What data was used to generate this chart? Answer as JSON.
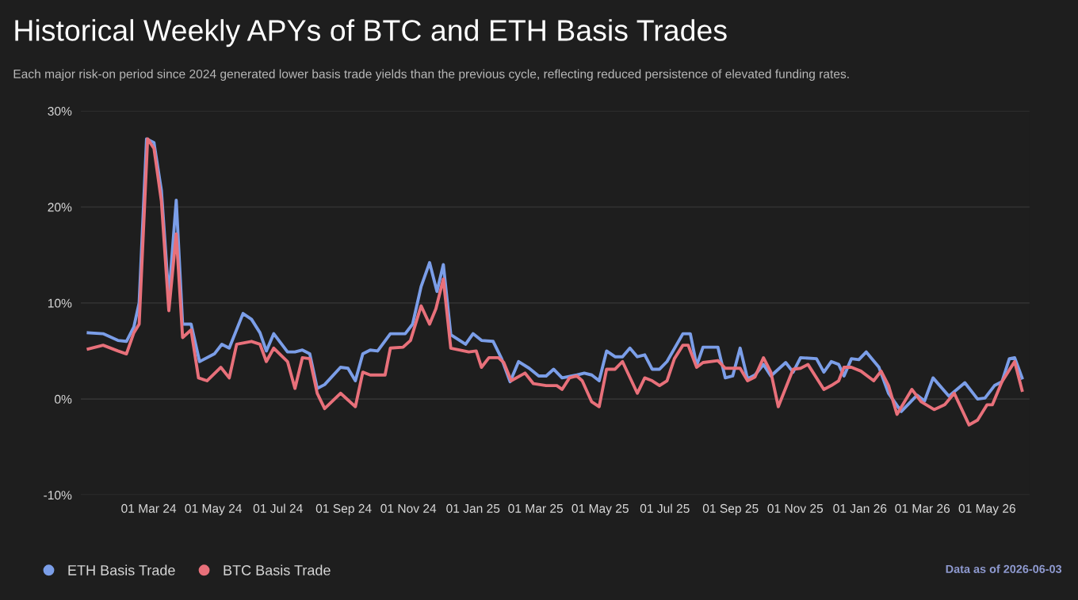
{
  "chart_data": {
    "type": "line",
    "title": "Historical Weekly APYs of BTC and ETH Basis Trades",
    "subtitle": "Each major risk-on period since 2024 generated lower basis trade yields than the previous cycle, reflecting reduced persistence of elevated funding rates.",
    "annotations": [
      "Data as of 2026-06-03"
    ],
    "xlim": [
      "2023-12-28",
      "2026-06-10"
    ],
    "xticks": [
      {
        "value": "2024-03-01",
        "label": "01 Mar 24"
      },
      {
        "value": "2024-05-01",
        "label": "01 May 24"
      },
      {
        "value": "2024-07-01",
        "label": "01 Jul 24"
      },
      {
        "value": "2024-09-01",
        "label": "01 Sep 24"
      },
      {
        "value": "2024-11-01",
        "label": "01 Nov 24"
      },
      {
        "value": "2025-01-01",
        "label": "01 Jan 25"
      },
      {
        "value": "2025-03-01",
        "label": "01 Mar 25"
      },
      {
        "value": "2025-05-01",
        "label": "01 May 25"
      },
      {
        "value": "2025-07-01",
        "label": "01 Jul 25"
      },
      {
        "value": "2025-09-01",
        "label": "01 Sep 25"
      },
      {
        "value": "2025-11-01",
        "label": "01 Nov 25"
      },
      {
        "value": "2026-01-01",
        "label": "01 Jan 26"
      },
      {
        "value": "2026-03-01",
        "label": "01 Mar 26"
      },
      {
        "value": "2026-05-01",
        "label": "01 May 26"
      }
    ],
    "ylim": [
      -10,
      30
    ],
    "yticks": [
      {
        "value": -10,
        "label": "-10%"
      },
      {
        "value": 0,
        "label": "0%"
      },
      {
        "value": 10,
        "label": "10%"
      },
      {
        "value": 20,
        "label": "20%"
      },
      {
        "value": 30,
        "label": "30%"
      }
    ],
    "grid": "y",
    "legend": "bottom left",
    "marker": "none",
    "line_style": "solid",
    "series": [
      {
        "name": "ETH Basis Trade",
        "color": "#7b9ee8",
        "x": [
          "2024-01-04",
          "2024-01-18",
          "2024-02-01",
          "2024-02-09",
          "2024-02-16",
          "2024-02-21",
          "2024-02-28",
          "2024-03-06",
          "2024-03-13",
          "2024-03-20",
          "2024-03-27",
          "2024-04-02",
          "2024-04-10",
          "2024-04-18",
          "2024-05-02",
          "2024-05-09",
          "2024-05-16",
          "2024-05-29",
          "2024-06-06",
          "2024-06-14",
          "2024-06-20",
          "2024-06-27",
          "2024-07-10",
          "2024-07-17",
          "2024-07-24",
          "2024-07-31",
          "2024-08-07",
          "2024-08-14",
          "2024-08-29",
          "2024-09-05",
          "2024-09-12",
          "2024-09-19",
          "2024-09-26",
          "2024-10-03",
          "2024-10-15",
          "2024-10-29",
          "2024-11-05",
          "2024-11-13",
          "2024-11-21",
          "2024-11-28",
          "2024-12-04",
          "2024-12-11",
          "2024-12-25",
          "2025-01-01",
          "2025-01-09",
          "2025-01-20",
          "2025-01-28",
          "2025-02-05",
          "2025-02-13",
          "2025-02-23",
          "2025-03-04",
          "2025-03-11",
          "2025-03-18",
          "2025-03-26",
          "2025-04-09",
          "2025-04-16",
          "2025-04-23",
          "2025-04-30",
          "2025-05-07",
          "2025-05-15",
          "2025-05-22",
          "2025-05-29",
          "2025-06-05",
          "2025-06-12",
          "2025-06-19",
          "2025-06-26",
          "2025-07-03",
          "2025-07-18",
          "2025-07-25",
          "2025-07-31",
          "2025-08-06",
          "2025-08-20",
          "2025-08-27",
          "2025-09-03",
          "2025-09-10",
          "2025-09-17",
          "2025-09-24",
          "2025-10-02",
          "2025-10-09",
          "2025-10-23",
          "2025-10-30",
          "2025-11-06",
          "2025-11-21",
          "2025-11-28",
          "2025-12-05",
          "2025-12-12",
          "2025-12-17",
          "2025-12-24",
          "2025-12-31",
          "2026-01-07",
          "2026-01-19",
          "2026-01-28",
          "2026-02-09",
          "2026-02-24",
          "2026-03-03",
          "2026-03-11",
          "2026-03-26",
          "2026-04-10",
          "2026-04-22",
          "2026-04-29",
          "2026-05-08",
          "2026-05-15",
          "2026-05-22",
          "2026-05-27",
          "2026-06-03"
        ],
        "values": [
          6.9,
          6.8,
          6.1,
          6.0,
          7.5,
          10.0,
          27.1,
          26.7,
          21.7,
          10.6,
          20.7,
          7.8,
          7.8,
          3.9,
          4.7,
          5.7,
          5.3,
          8.9,
          8.3,
          6.9,
          5.0,
          6.8,
          4.9,
          4.9,
          5.1,
          4.7,
          1.1,
          1.5,
          3.3,
          3.2,
          1.9,
          4.7,
          5.1,
          5.0,
          6.8,
          6.8,
          7.8,
          11.7,
          14.2,
          11.2,
          14.0,
          6.7,
          5.7,
          6.8,
          6.1,
          6.0,
          4.2,
          1.8,
          3.9,
          3.2,
          2.4,
          2.4,
          3.1,
          2.2,
          2.5,
          2.7,
          2.5,
          1.9,
          5.0,
          4.4,
          4.4,
          5.3,
          4.4,
          4.6,
          3.1,
          3.1,
          3.9,
          6.8,
          6.8,
          3.5,
          5.4,
          5.4,
          2.2,
          2.4,
          5.3,
          2.1,
          2.5,
          3.6,
          2.4,
          3.8,
          2.8,
          4.3,
          4.2,
          2.8,
          3.9,
          3.6,
          2.4,
          4.2,
          4.1,
          4.9,
          3.3,
          0.6,
          -1.3,
          0.4,
          -0.2,
          2.2,
          0.3,
          1.7,
          0.0,
          0.1,
          1.4,
          1.8,
          4.2,
          4.3,
          2.2
        ]
      },
      {
        "name": "BTC Basis Trade",
        "color": "#e8707a",
        "x": [
          "2024-01-04",
          "2024-01-18",
          "2024-02-01",
          "2024-02-09",
          "2024-02-16",
          "2024-02-21",
          "2024-02-29",
          "2024-03-06",
          "2024-03-13",
          "2024-03-20",
          "2024-03-27",
          "2024-04-02",
          "2024-04-10",
          "2024-04-17",
          "2024-04-25",
          "2024-05-08",
          "2024-05-16",
          "2024-05-23",
          "2024-06-06",
          "2024-06-14",
          "2024-06-20",
          "2024-06-27",
          "2024-07-10",
          "2024-07-17",
          "2024-07-24",
          "2024-07-31",
          "2024-08-07",
          "2024-08-14",
          "2024-08-29",
          "2024-09-12",
          "2024-09-19",
          "2024-09-26",
          "2024-10-10",
          "2024-10-15",
          "2024-10-27",
          "2024-11-03",
          "2024-11-13",
          "2024-11-21",
          "2024-11-27",
          "2024-12-04",
          "2024-12-11",
          "2024-12-28",
          "2025-01-04",
          "2025-01-09",
          "2025-01-16",
          "2025-01-25",
          "2025-01-30",
          "2025-02-06",
          "2025-02-19",
          "2025-02-27",
          "2025-03-11",
          "2025-03-21",
          "2025-03-26",
          "2025-04-02",
          "2025-04-09",
          "2025-04-14",
          "2025-04-23",
          "2025-04-30",
          "2025-05-07",
          "2025-05-15",
          "2025-05-22",
          "2025-06-05",
          "2025-06-12",
          "2025-06-19",
          "2025-06-26",
          "2025-07-03",
          "2025-07-10",
          "2025-07-18",
          "2025-07-23",
          "2025-07-31",
          "2025-08-06",
          "2025-08-20",
          "2025-08-27",
          "2025-09-10",
          "2025-09-17",
          "2025-09-24",
          "2025-10-02",
          "2025-10-09",
          "2025-10-16",
          "2025-10-30",
          "2025-11-06",
          "2025-11-13",
          "2025-11-28",
          "2025-12-05",
          "2025-12-12",
          "2025-12-17",
          "2025-12-24",
          "2026-01-02",
          "2026-01-14",
          "2026-01-21",
          "2026-01-28",
          "2026-02-05",
          "2026-02-19",
          "2026-02-28",
          "2026-03-12",
          "2026-03-22",
          "2026-03-31",
          "2026-04-14",
          "2026-04-22",
          "2026-05-01",
          "2026-05-06",
          "2026-05-15",
          "2026-05-27",
          "2026-06-03"
        ],
        "values": [
          5.2,
          5.6,
          5.0,
          4.7,
          6.9,
          7.8,
          27.1,
          26.1,
          20.6,
          9.2,
          17.2,
          6.4,
          7.2,
          2.2,
          1.9,
          3.3,
          2.2,
          5.7,
          6.0,
          5.7,
          3.9,
          5.3,
          3.9,
          1.1,
          4.3,
          4.2,
          0.6,
          -1.0,
          0.6,
          -0.8,
          2.8,
          2.5,
          2.5,
          5.3,
          5.4,
          6.1,
          9.7,
          7.8,
          9.4,
          12.5,
          5.3,
          4.9,
          5.0,
          3.3,
          4.3,
          4.3,
          3.8,
          1.9,
          2.7,
          1.6,
          1.4,
          1.4,
          1.0,
          2.2,
          2.4,
          1.9,
          -0.3,
          -0.8,
          3.1,
          3.1,
          3.9,
          0.6,
          2.2,
          1.9,
          1.4,
          1.9,
          4.2,
          5.6,
          5.6,
          3.3,
          3.8,
          4.0,
          3.2,
          3.2,
          1.9,
          2.3,
          4.3,
          2.8,
          -0.8,
          3.1,
          3.2,
          3.6,
          1.0,
          1.4,
          1.9,
          3.3,
          3.3,
          2.9,
          1.9,
          2.9,
          1.4,
          -1.6,
          1.0,
          -0.3,
          -1.1,
          -0.6,
          0.6,
          -2.7,
          -2.2,
          -0.6,
          -0.6,
          1.8,
          3.9,
          0.9
        ]
      }
    ]
  }
}
